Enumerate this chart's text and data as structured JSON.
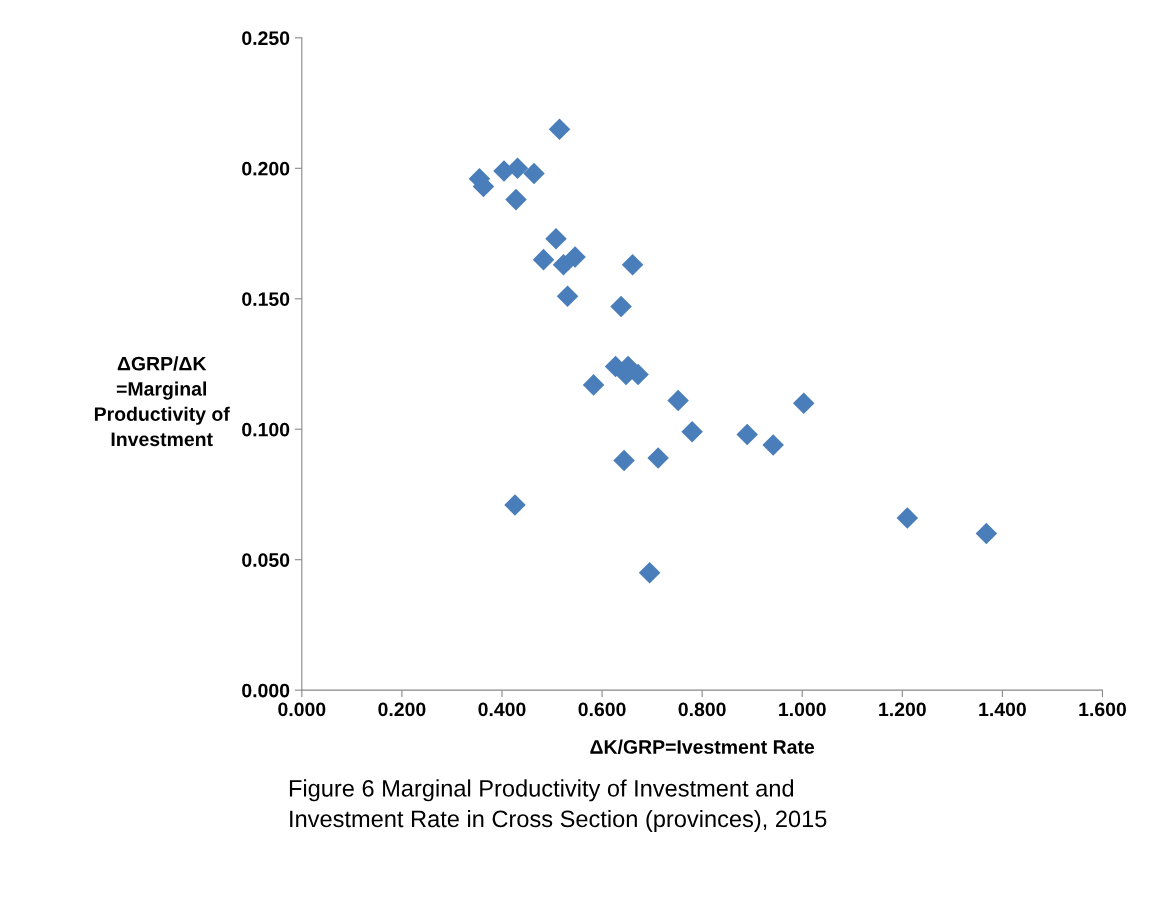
{
  "chart_data": {
    "type": "scatter",
    "xlabel": "ΔK/GRP=Ivestment Rate",
    "ylabel": "ΔGRP/ΔK\n=Marginal\nProductivity of\nInvestment",
    "annotations": [
      "Figure 6 Marginal Productivity of Investment and\nInvestment Rate in Cross Section (provinces), 2015"
    ],
    "x": [
      0.515,
      0.404,
      0.431,
      0.464,
      0.355,
      0.363,
      0.428,
      0.508,
      0.483,
      0.523,
      0.546,
      0.661,
      0.531,
      0.638,
      0.627,
      0.652,
      0.648,
      0.672,
      0.583,
      0.752,
      1.003,
      0.78,
      0.89,
      0.942,
      0.644,
      0.712,
      0.426,
      1.21,
      1.368,
      0.695
    ],
    "values": [
      0.215,
      0.199,
      0.2,
      0.198,
      0.196,
      0.193,
      0.188,
      0.173,
      0.165,
      0.163,
      0.166,
      0.163,
      0.151,
      0.147,
      0.124,
      0.124,
      0.121,
      0.121,
      0.117,
      0.111,
      0.11,
      0.099,
      0.098,
      0.094,
      0.088,
      0.089,
      0.071,
      0.066,
      0.06,
      0.045
    ],
    "color": "#4a7ebb",
    "marker": "diamond",
    "grid": false,
    "legend": false,
    "xlim": [
      0.0,
      1.6
    ],
    "xticks": [
      {
        "value": 0.0,
        "label": "0.000"
      },
      {
        "value": 0.2,
        "label": "0.200"
      },
      {
        "value": 0.4,
        "label": "0.400"
      },
      {
        "value": 0.6,
        "label": "0.600"
      },
      {
        "value": 0.8,
        "label": "0.800"
      },
      {
        "value": 1.0,
        "label": "1.000"
      },
      {
        "value": 1.2,
        "label": "1.200"
      },
      {
        "value": 1.4,
        "label": "1.400"
      },
      {
        "value": 1.6,
        "label": "1.600"
      }
    ],
    "ylim": [
      0.0,
      0.25
    ],
    "yticks": [
      {
        "value": 0.0,
        "label": "0.000"
      },
      {
        "value": 0.05,
        "label": "0.050"
      },
      {
        "value": 0.1,
        "label": "0.100"
      },
      {
        "value": 0.15,
        "label": "0.150"
      },
      {
        "value": 0.2,
        "label": "0.200"
      },
      {
        "value": 0.25,
        "label": "0.250"
      }
    ]
  }
}
